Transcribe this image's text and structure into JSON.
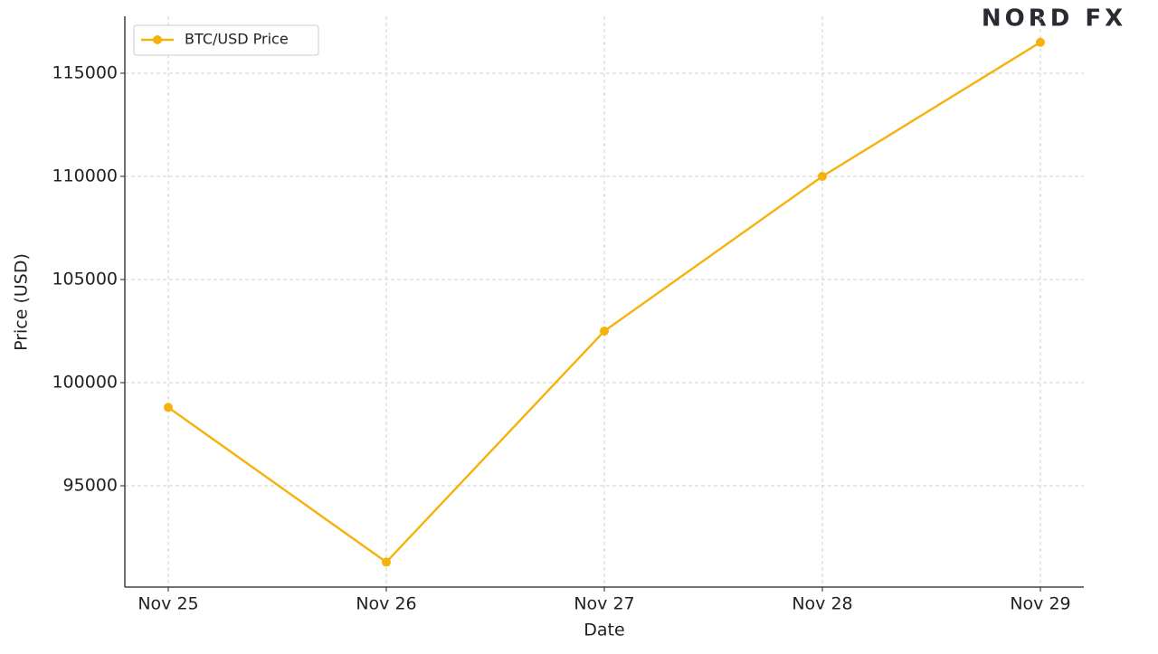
{
  "logo": "NORD FX",
  "chart_data": {
    "type": "line",
    "xlabel": "Date",
    "ylabel": "Price (USD)",
    "categories": [
      "Nov 25",
      "Nov 26",
      "Nov 27",
      "Nov 28",
      "Nov 29"
    ],
    "series": [
      {
        "name": "BTC/USD Price",
        "color": "#f5b20a",
        "values": [
          98800,
          91300,
          102500,
          110000,
          116500
        ]
      }
    ],
    "ylim": [
      90090,
      117760
    ],
    "yticks": [
      95000,
      100000,
      105000,
      110000,
      115000
    ],
    "grid": true,
    "legend": "upper left"
  }
}
